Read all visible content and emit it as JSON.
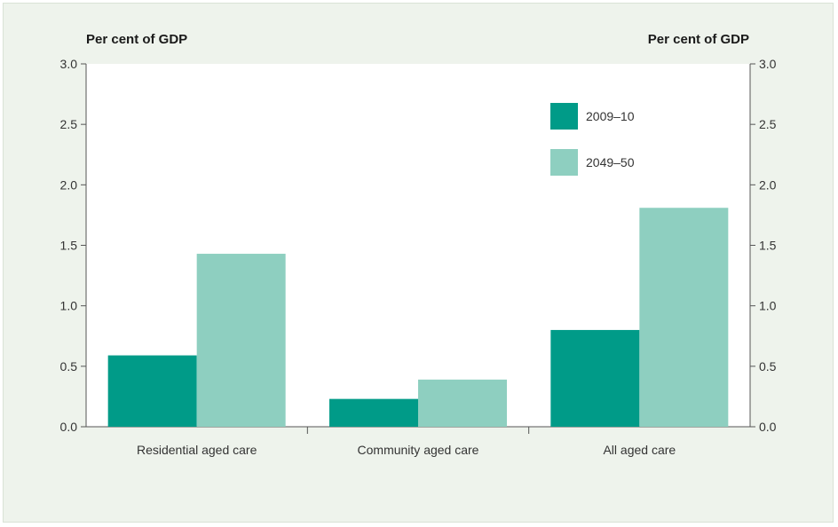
{
  "chart_data": {
    "type": "bar",
    "left_axis_label": "Per cent of GDP",
    "right_axis_label": "Per cent of GDP",
    "categories": [
      "Residential aged care",
      "Community aged care",
      "All aged care"
    ],
    "series": [
      {
        "name": "2009–10",
        "values": [
          0.59,
          0.23,
          0.8
        ],
        "color": "#009b88"
      },
      {
        "name": "2049–50",
        "values": [
          1.43,
          0.39,
          1.81
        ],
        "color": "#8ecfc0"
      }
    ],
    "ylim": [
      0,
      3.0
    ],
    "yticks": [
      "0.0",
      "0.5",
      "1.0",
      "1.5",
      "2.0",
      "2.5",
      "3.0"
    ],
    "grid": false,
    "legend_position": "top-right"
  }
}
